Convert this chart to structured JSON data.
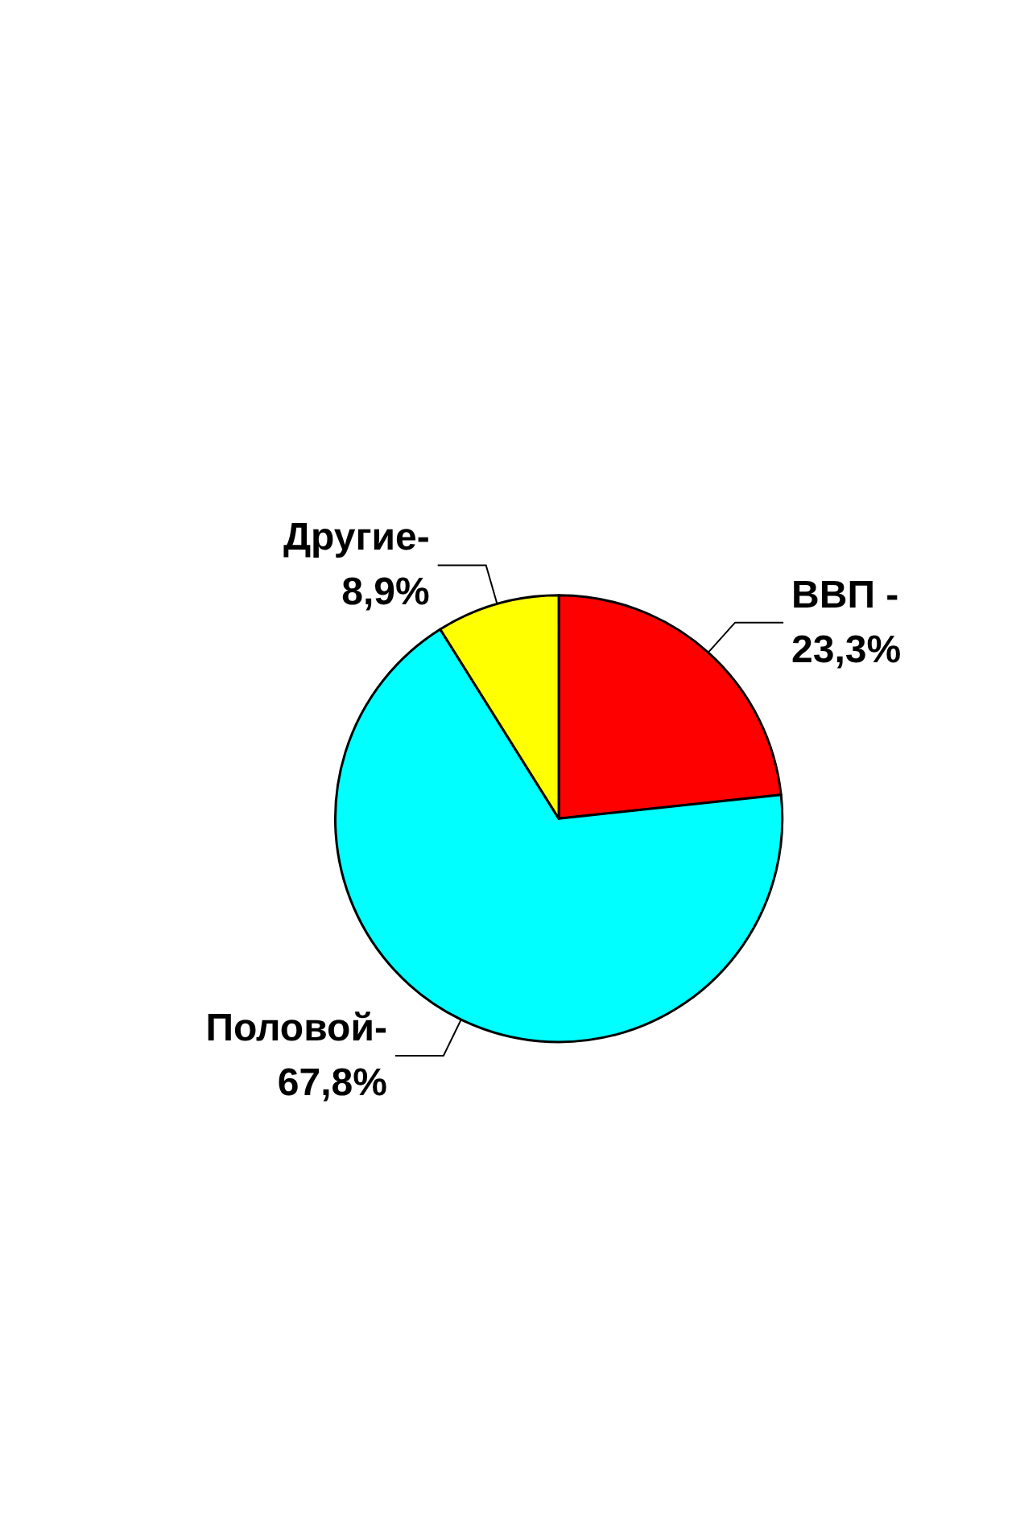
{
  "chart_data": {
    "type": "pie",
    "categories": [
      "ВВП -",
      "Половой-",
      "Другие-"
    ],
    "values": [
      23.3,
      67.8,
      8.9
    ],
    "colors": [
      "#ff0000",
      "#00ffff",
      "#ffff00"
    ],
    "value_labels": [
      "23,3%",
      "67,8%",
      "8,9%"
    ],
    "legend": false
  }
}
